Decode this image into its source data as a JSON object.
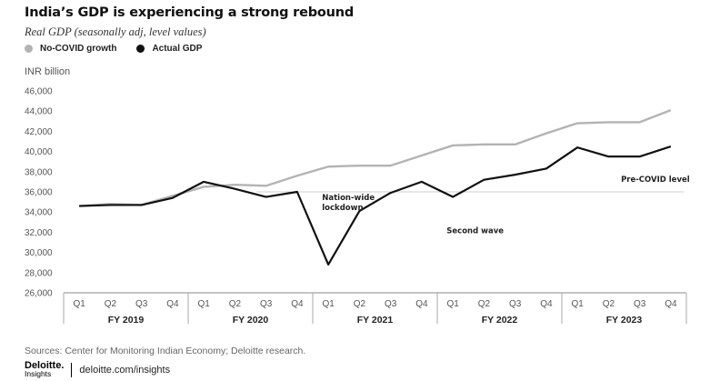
{
  "title": "India’s GDP is experiencing a strong rebound",
  "subtitle": "Real GDP (seasonally adj, level values)",
  "colors": {
    "no_covid": "#b3b3b3",
    "actual": "#111111"
  },
  "chart_data": {
    "type": "line",
    "title": "India’s GDP is experiencing a strong rebound",
    "subtitle": "Real GDP (seasonally adj, level values)",
    "ylabel": "INR billion",
    "ylim": [
      26000,
      46000
    ],
    "yticks": [
      "46,000",
      "44,000",
      "42,000",
      "40,000",
      "38,000",
      "36,000",
      "34,000",
      "32,000",
      "30,000",
      "28,000",
      "26,000"
    ],
    "ytick_values": [
      46000,
      44000,
      42000,
      40000,
      38000,
      36000,
      34000,
      32000,
      30000,
      28000,
      26000
    ],
    "categories": [
      "Q1",
      "Q2",
      "Q3",
      "Q4",
      "Q1",
      "Q2",
      "Q3",
      "Q4",
      "Q1",
      "Q2",
      "Q3",
      "Q4",
      "Q1",
      "Q2",
      "Q3",
      "Q4",
      "Q1",
      "Q2",
      "Q3",
      "Q4"
    ],
    "fiscal_years": [
      "FY 2019",
      "FY 2020",
      "FY 2021",
      "FY 2022",
      "FY 2023"
    ],
    "series": [
      {
        "name": "No-COVID growth",
        "values": [
          34600,
          34800,
          34700,
          35600,
          36500,
          36700,
          36600,
          37600,
          38500,
          38600,
          38600,
          39600,
          40600,
          40700,
          40700,
          41800,
          42800,
          42900,
          42900,
          44100
        ]
      },
      {
        "name": "Actual GDP",
        "values": [
          34600,
          34700,
          34700,
          35400,
          37000,
          36300,
          35500,
          36000,
          28800,
          34100,
          35900,
          37000,
          35500,
          37200,
          37700,
          38300,
          40400,
          39500,
          39500,
          40500
        ]
      }
    ],
    "reference_line": {
      "label": "Pre-COVID level",
      "value": 36000
    },
    "annotations": [
      {
        "text_lines": [
          "Nation-wide",
          "lockdown"
        ],
        "x_index": 7.8,
        "y": 35200
      },
      {
        "text_lines": [
          "Second wave"
        ],
        "x_index": 11.8,
        "y": 31900
      },
      {
        "text_lines": [
          "Pre-COVID level"
        ],
        "x_index": 17.4,
        "y": 37000
      }
    ],
    "legend": "top-left",
    "grid": false
  },
  "sources": "Sources: Center for Monitoring Indian Economy; Deloitte research.",
  "footer": {
    "logo_top": "Deloitte.",
    "logo_bottom": "Insights",
    "url": "deloitte.com/insights"
  }
}
